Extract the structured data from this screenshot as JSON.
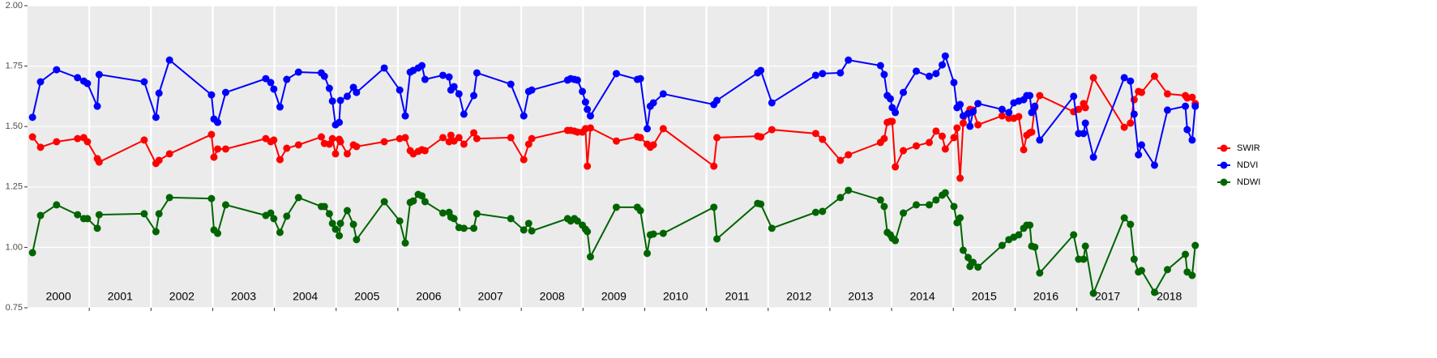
{
  "chart_data": {
    "type": "line",
    "x": [
      2000.08,
      2000.21,
      2000.47,
      2000.81,
      2000.91,
      2000.97,
      2001.13,
      2001.16,
      2001.89,
      2002.08,
      2002.13,
      2002.3,
      2002.98,
      2003.02,
      2003.08,
      2003.21,
      2003.86,
      2003.94,
      2003.99,
      2004.09,
      2004.2,
      2004.39,
      2004.76,
      2004.81,
      2004.89,
      2004.94,
      2004.99,
      2005.05,
      2005.07,
      2005.18,
      2005.28,
      2005.33,
      2005.78,
      2006.03,
      2006.12,
      2006.2,
      2006.25,
      2006.33,
      2006.39,
      2006.44,
      2006.73,
      2006.83,
      2006.86,
      2006.91,
      2006.99,
      2007.07,
      2007.23,
      2007.28,
      2007.83,
      2008.04,
      2008.12,
      2008.17,
      2008.75,
      2008.8,
      2008.86,
      2008.91,
      2008.99,
      2009.04,
      2009.07,
      2009.12,
      2009.54,
      2009.88,
      2009.93,
      2010.04,
      2010.09,
      2010.14,
      2010.3,
      2011.12,
      2011.17,
      2011.83,
      2011.88,
      2012.06,
      2012.77,
      2012.88,
      2013.17,
      2013.3,
      2013.82,
      2013.88,
      2013.93,
      2013.98,
      2014.01,
      2014.06,
      2014.19,
      2014.4,
      2014.61,
      2014.72,
      2014.82,
      2014.87,
      2015.01,
      2015.06,
      2015.11,
      2015.16,
      2015.24,
      2015.27,
      2015.32,
      2015.4,
      2015.79,
      2015.9,
      2015.98,
      2016.06,
      2016.14,
      2016.19,
      2016.24,
      2016.27,
      2016.32,
      2016.4,
      2016.95,
      2017.03,
      2017.11,
      2017.14,
      2017.27,
      2017.77,
      2017.87,
      2017.93,
      2018.0,
      2018.05,
      2018.26,
      2018.47,
      2018.76,
      2018.79,
      2018.87,
      2018.92
    ],
    "series": [
      {
        "name": "SWIR",
        "color": "#ff0000",
        "values": [
          1.457,
          1.414,
          1.437,
          1.45,
          1.454,
          1.437,
          1.367,
          1.353,
          1.444,
          1.347,
          1.36,
          1.387,
          1.467,
          1.373,
          1.407,
          1.407,
          1.45,
          1.437,
          1.444,
          1.363,
          1.41,
          1.424,
          1.457,
          1.43,
          1.427,
          1.45,
          1.387,
          1.447,
          1.437,
          1.387,
          1.424,
          1.417,
          1.437,
          1.45,
          1.454,
          1.4,
          1.387,
          1.397,
          1.404,
          1.4,
          1.454,
          1.437,
          1.464,
          1.44,
          1.454,
          1.427,
          1.474,
          1.45,
          1.454,
          1.363,
          1.427,
          1.45,
          1.484,
          1.484,
          1.481,
          1.477,
          1.477,
          1.491,
          1.336,
          1.494,
          1.44,
          1.457,
          1.454,
          1.427,
          1.414,
          1.424,
          1.491,
          1.336,
          1.454,
          1.46,
          1.457,
          1.487,
          1.471,
          1.447,
          1.36,
          1.383,
          1.434,
          1.45,
          1.517,
          1.521,
          1.521,
          1.333,
          1.4,
          1.42,
          1.434,
          1.481,
          1.46,
          1.407,
          1.454,
          1.494,
          1.286,
          1.514,
          1.554,
          1.571,
          1.568,
          1.507,
          1.544,
          1.534,
          1.534,
          1.541,
          1.404,
          1.464,
          1.474,
          1.477,
          1.578,
          1.628,
          1.561,
          1.571,
          1.595,
          1.578,
          1.702,
          1.497,
          1.514,
          1.611,
          1.645,
          1.641,
          1.708,
          1.635,
          1.628,
          1.618,
          1.621,
          1.595
        ]
      },
      {
        "name": "NDVI",
        "color": "#0000ff",
        "values": [
          1.538,
          1.685,
          1.735,
          1.702,
          1.688,
          1.678,
          1.584,
          1.715,
          1.685,
          1.538,
          1.638,
          1.775,
          1.631,
          1.531,
          1.517,
          1.641,
          1.698,
          1.682,
          1.655,
          1.581,
          1.695,
          1.725,
          1.722,
          1.708,
          1.658,
          1.605,
          1.507,
          1.517,
          1.608,
          1.625,
          1.662,
          1.641,
          1.742,
          1.651,
          1.544,
          1.725,
          1.732,
          1.742,
          1.752,
          1.695,
          1.712,
          1.705,
          1.651,
          1.665,
          1.635,
          1.551,
          1.628,
          1.722,
          1.675,
          1.544,
          1.645,
          1.651,
          1.692,
          1.698,
          1.695,
          1.692,
          1.645,
          1.601,
          1.571,
          1.544,
          1.719,
          1.695,
          1.698,
          1.491,
          1.584,
          1.598,
          1.635,
          1.591,
          1.608,
          1.722,
          1.732,
          1.598,
          1.712,
          1.719,
          1.722,
          1.775,
          1.752,
          1.715,
          1.628,
          1.615,
          1.578,
          1.558,
          1.641,
          1.729,
          1.708,
          1.719,
          1.755,
          1.792,
          1.682,
          1.578,
          1.591,
          1.544,
          1.554,
          1.501,
          1.561,
          1.595,
          1.571,
          1.558,
          1.598,
          1.605,
          1.611,
          1.628,
          1.628,
          1.558,
          1.584,
          1.444,
          1.625,
          1.471,
          1.471,
          1.514,
          1.373,
          1.702,
          1.688,
          1.551,
          1.383,
          1.424,
          1.34,
          1.568,
          1.584,
          1.487,
          1.444,
          1.584
        ]
      },
      {
        "name": "NDWI",
        "color": "#006400",
        "values": [
          0.978,
          1.132,
          1.176,
          1.135,
          1.119,
          1.119,
          1.079,
          1.135,
          1.139,
          1.065,
          1.139,
          1.206,
          1.202,
          1.072,
          1.058,
          1.176,
          1.132,
          1.142,
          1.119,
          1.062,
          1.129,
          1.206,
          1.169,
          1.169,
          1.139,
          1.099,
          1.075,
          1.048,
          1.099,
          1.152,
          1.095,
          1.032,
          1.189,
          1.109,
          1.018,
          1.186,
          1.192,
          1.219,
          1.213,
          1.189,
          1.142,
          1.145,
          1.125,
          1.119,
          1.082,
          1.079,
          1.079,
          1.139,
          1.119,
          1.072,
          1.099,
          1.068,
          1.119,
          1.109,
          1.119,
          1.109,
          1.092,
          1.075,
          1.065,
          0.961,
          1.166,
          1.166,
          1.152,
          0.975,
          1.052,
          1.055,
          1.058,
          1.166,
          1.035,
          1.182,
          1.179,
          1.079,
          1.145,
          1.149,
          1.206,
          1.236,
          1.196,
          1.169,
          1.062,
          1.052,
          1.038,
          1.028,
          1.142,
          1.176,
          1.176,
          1.196,
          1.216,
          1.226,
          1.169,
          1.102,
          1.122,
          0.988,
          0.958,
          0.921,
          0.938,
          0.918,
          1.008,
          1.032,
          1.042,
          1.052,
          1.079,
          1.092,
          1.092,
          1.005,
          1.001,
          0.894,
          1.052,
          0.951,
          0.951,
          1.005,
          0.81,
          1.122,
          1.095,
          0.951,
          0.898,
          0.904,
          0.814,
          0.908,
          0.971,
          0.898,
          0.884,
          1.008
        ]
      }
    ],
    "xlim": [
      2000,
      2018.95
    ],
    "xticks": [
      {
        "value": 2000.5,
        "label": "2000"
      },
      {
        "value": 2001.5,
        "label": "2001"
      },
      {
        "value": 2002.5,
        "label": "2002"
      },
      {
        "value": 2003.5,
        "label": "2003"
      },
      {
        "value": 2004.5,
        "label": "2004"
      },
      {
        "value": 2005.5,
        "label": "2005"
      },
      {
        "value": 2006.5,
        "label": "2006"
      },
      {
        "value": 2007.5,
        "label": "2007"
      },
      {
        "value": 2008.5,
        "label": "2008"
      },
      {
        "value": 2009.5,
        "label": "2009"
      },
      {
        "value": 2010.5,
        "label": "2010"
      },
      {
        "value": 2011.5,
        "label": "2011"
      },
      {
        "value": 2012.5,
        "label": "2012"
      },
      {
        "value": 2013.5,
        "label": "2013"
      },
      {
        "value": 2014.5,
        "label": "2014"
      },
      {
        "value": 2015.5,
        "label": "2015"
      },
      {
        "value": 2016.5,
        "label": "2016"
      },
      {
        "value": 2017.5,
        "label": "2017"
      },
      {
        "value": 2018.5,
        "label": "2018"
      }
    ],
    "xgrid": [
      2001,
      2002,
      2003,
      2004,
      2005,
      2006,
      2007,
      2008,
      2009,
      2010,
      2011,
      2012,
      2013,
      2014,
      2015,
      2016,
      2017,
      2018
    ],
    "ylim": [
      0.75,
      2
    ],
    "yticks": [
      {
        "value": 0.75,
        "label": "0.75"
      },
      {
        "value": 1,
        "label": "1.00"
      },
      1.25,
      {
        "value": 1.5,
        "label": "1.50"
      },
      1.75,
      {
        "value": 2,
        "label": "2.00"
      }
    ],
    "grid": true,
    "legend": "right"
  }
}
